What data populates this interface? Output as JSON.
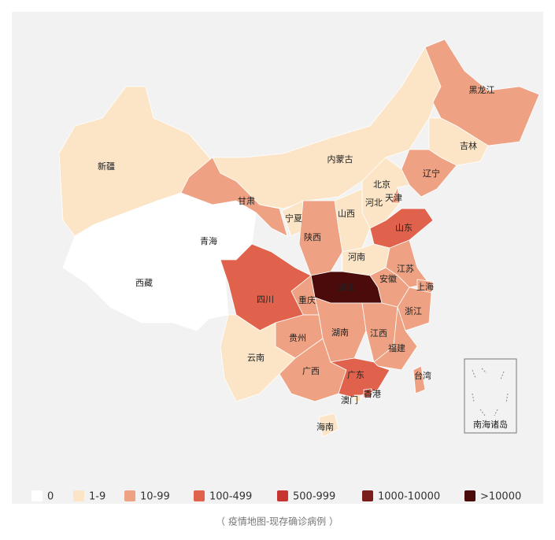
{
  "map": {
    "caption": "（ 疫情地图-现存确诊病例 ）",
    "inset_label": "南海诸岛",
    "legend": [
      {
        "label": "0",
        "color": "#ffffff"
      },
      {
        "label": "1-9",
        "color": "#fbe5c6"
      },
      {
        "label": "10-99",
        "color": "#eea283"
      },
      {
        "label": "100-499",
        "color": "#e0624c"
      },
      {
        "label": "500-999",
        "color": "#c83430"
      },
      {
        "label": "1000-10000",
        "color": "#7a1e1c"
      },
      {
        "label": ">10000",
        "color": "#4b0b0b"
      }
    ],
    "provinces": [
      {
        "name": "新疆",
        "level": 1
      },
      {
        "name": "西藏",
        "level": 0
      },
      {
        "name": "青海",
        "level": 0
      },
      {
        "name": "甘肃",
        "level": 2
      },
      {
        "name": "内蒙古",
        "level": 1
      },
      {
        "name": "黑龙江",
        "level": 2
      },
      {
        "name": "吉林",
        "level": 1
      },
      {
        "name": "辽宁",
        "level": 2
      },
      {
        "name": "北京",
        "level": 3
      },
      {
        "name": "天津",
        "level": 2
      },
      {
        "name": "河北",
        "level": 1
      },
      {
        "name": "山西",
        "level": 1
      },
      {
        "name": "宁夏",
        "level": 1
      },
      {
        "name": "陕西",
        "level": 2
      },
      {
        "name": "山东",
        "level": 3
      },
      {
        "name": "河南",
        "level": 1
      },
      {
        "name": "江苏",
        "level": 2
      },
      {
        "name": "安徽",
        "level": 2
      },
      {
        "name": "上海",
        "level": 2
      },
      {
        "name": "浙江",
        "level": 2
      },
      {
        "name": "湖北",
        "level": 6
      },
      {
        "name": "重庆",
        "level": 2
      },
      {
        "name": "四川",
        "level": 3
      },
      {
        "name": "贵州",
        "level": 2
      },
      {
        "name": "湖南",
        "level": 2
      },
      {
        "name": "江西",
        "level": 2
      },
      {
        "name": "福建",
        "level": 2
      },
      {
        "name": "云南",
        "level": 1
      },
      {
        "name": "广西",
        "level": 2
      },
      {
        "name": "广东",
        "level": 3
      },
      {
        "name": "香港",
        "level": 3
      },
      {
        "name": "澳门",
        "level": 1
      },
      {
        "name": "海南",
        "level": 1
      },
      {
        "name": "台湾",
        "level": 2
      }
    ]
  }
}
